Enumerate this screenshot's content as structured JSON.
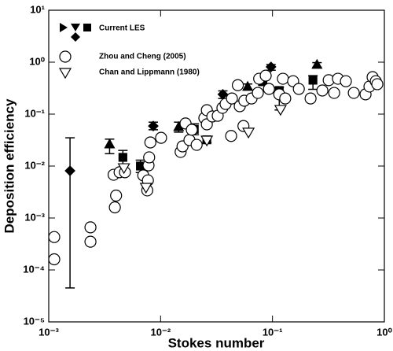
{
  "chart_data": {
    "type": "scatter",
    "x_label": "Stokes number",
    "y_label": "Deposition efficiency",
    "xscale": "log",
    "yscale": "log",
    "xlim": [
      0.001,
      1
    ],
    "ylim": [
      1e-05,
      10
    ],
    "xticks": [
      {
        "value": 0.001,
        "label": "10⁻³"
      },
      {
        "value": 0.01,
        "label": "10⁻²"
      },
      {
        "value": 0.1,
        "label": "10⁻¹"
      },
      {
        "value": 1,
        "label": "10⁰"
      }
    ],
    "yticks": [
      {
        "value": 1e-05,
        "label": "10⁻⁵"
      },
      {
        "value": 0.0001,
        "label": "10⁻⁴"
      },
      {
        "value": 0.001,
        "label": "10⁻³"
      },
      {
        "value": 0.01,
        "label": "10⁻²"
      },
      {
        "value": 0.1,
        "label": "10⁻¹"
      },
      {
        "value": 1,
        "label": "10⁰"
      },
      {
        "value": 10,
        "label": "10¹"
      }
    ],
    "legend": "top-left",
    "series": [
      {
        "name": "Current LES",
        "color": "#000000",
        "markers": [
          "diamond",
          "triangle-up",
          "square",
          "square",
          "diamond",
          "triangle-up",
          "square",
          "square",
          "diamond",
          "triangle-up",
          "square",
          "square",
          "diamond",
          "triangle-up",
          "square"
        ],
        "x": [
          0.00155,
          0.0035,
          0.0046,
          0.0066,
          0.0086,
          0.0145,
          0.02,
          0.0259,
          0.036,
          0.06,
          0.082,
          0.115,
          0.097,
          0.25,
          0.23
        ],
        "values": [
          0.0081,
          0.0265,
          0.0147,
          0.01,
          0.059,
          0.057,
          0.051,
          0.032,
          0.24,
          0.34,
          0.42,
          0.285,
          0.81,
          0.9,
          0.45
        ],
        "err_low": [
          4.5e-05,
          0.0173,
          0.011,
          0.0075,
          0.05,
          0.045,
          0.04,
          0.028,
          0.2,
          0.3,
          0.36,
          0.12,
          0.7,
          0.8,
          0.3
        ],
        "err_high": [
          0.035,
          0.033,
          0.02,
          0.013,
          0.07,
          0.07,
          0.065,
          0.036,
          0.28,
          0.38,
          0.48,
          0.33,
          0.9,
          0.98,
          0.55
        ]
      },
      {
        "name": "Zhou and Cheng (2005)",
        "color": "#000000",
        "marker": "circle",
        "x": [
          0.00112,
          0.00112,
          0.00236,
          0.00236,
          0.0038,
          0.004,
          0.0039,
          0.0043,
          0.0048,
          0.007,
          0.0076,
          0.0077,
          0.0078,
          0.0079,
          0.0081,
          0.0101,
          0.0151,
          0.0157,
          0.0167,
          0.0181,
          0.019,
          0.021,
          0.0246,
          0.0259,
          0.0259,
          0.029,
          0.0324,
          0.0357,
          0.0381,
          0.0434,
          0.0427,
          0.049,
          0.051,
          0.055,
          0.056,
          0.065,
          0.074,
          0.076,
          0.087,
          0.093,
          0.115,
          0.124,
          0.13,
          0.153,
          0.172,
          0.219,
          0.279,
          0.318,
          0.356,
          0.385,
          0.453,
          0.533,
          0.679,
          0.736,
          0.785,
          0.838,
          0.865
        ],
        "values": [
          0.00043,
          0.00016,
          0.00066,
          0.00035,
          0.0068,
          0.0027,
          0.0016,
          0.0076,
          0.0076,
          0.0066,
          0.0034,
          0.0053,
          0.0103,
          0.0147,
          0.0285,
          0.035,
          0.0187,
          0.0239,
          0.066,
          0.0316,
          0.05,
          0.0256,
          0.084,
          0.0635,
          0.119,
          0.09,
          0.093,
          0.132,
          0.157,
          0.2,
          0.038,
          0.36,
          0.142,
          0.059,
          0.181,
          0.2,
          0.256,
          0.48,
          0.55,
          0.305,
          0.24,
          0.48,
          0.2,
          0.43,
          0.305,
          0.2,
          0.285,
          0.45,
          0.256,
          0.48,
          0.43,
          0.256,
          0.24,
          0.34,
          0.515,
          0.43,
          0.377
        ]
      },
      {
        "name": "Chan and Lippmann (1980)",
        "color": "#000000",
        "marker": "triangle-down",
        "x": [
          0.0047,
          0.0074,
          0.0259,
          0.061,
          0.118
        ],
        "values": [
          0.0093,
          0.0039,
          0.0316,
          0.045,
          0.123
        ]
      }
    ]
  }
}
